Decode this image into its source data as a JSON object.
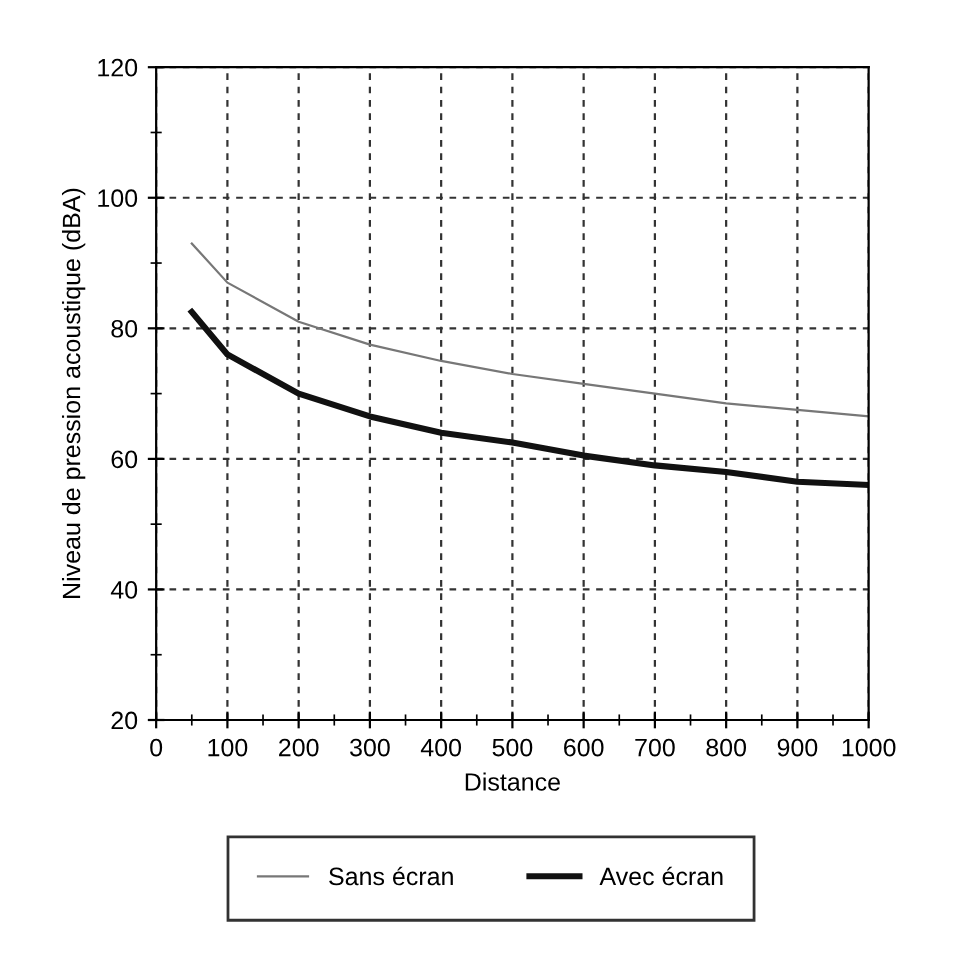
{
  "chart_data": {
    "type": "line",
    "xlabel": "Distance",
    "ylabel": "Niveau de pression acoustique (dBA)",
    "x": [
      50,
      100,
      200,
      300,
      400,
      500,
      600,
      700,
      800,
      900,
      1000
    ],
    "series": [
      {
        "name": "Sans écran",
        "color": "#777777",
        "values": [
          93,
          87,
          81,
          77.5,
          75,
          73,
          71.5,
          70,
          68.5,
          67.5,
          66.5
        ]
      },
      {
        "name": "Avec écran",
        "color": "#111111",
        "values": [
          82.5,
          76,
          70,
          66.5,
          64,
          62.5,
          60.5,
          59,
          58,
          56.5,
          56
        ]
      }
    ],
    "xlim": [
      0,
      1000
    ],
    "ylim": [
      20,
      120
    ],
    "xticks": [
      0,
      {
        "value": 50,
        "label": null
      },
      100,
      {
        "value": 150,
        "label": null
      },
      200,
      {
        "value": 250,
        "label": null
      },
      300,
      {
        "value": 350,
        "label": null
      },
      400,
      {
        "value": 450,
        "label": null
      },
      500,
      {
        "value": 550,
        "label": null
      },
      600,
      {
        "value": 650,
        "label": null
      },
      700,
      {
        "value": 750,
        "label": null
      },
      800,
      {
        "value": 850,
        "label": null
      },
      900,
      {
        "value": 950,
        "label": null
      },
      1000
    ],
    "yticks": [
      20,
      {
        "value": 30,
        "label": null
      },
      40,
      {
        "value": 50,
        "label": null
      },
      60,
      {
        "value": 70,
        "label": null
      },
      80,
      {
        "value": 90,
        "label": null
      },
      100,
      {
        "value": 110,
        "label": null
      },
      120
    ],
    "grid": true,
    "legend": "bottom",
    "line_style": "solid",
    "marker": "none"
  }
}
